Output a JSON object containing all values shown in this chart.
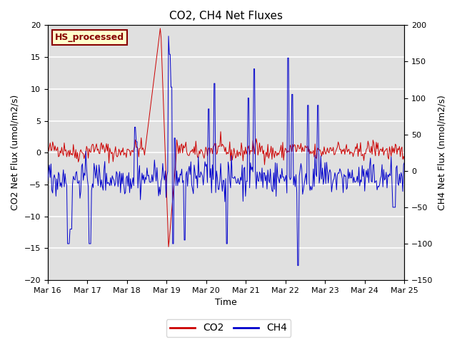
{
  "title": "CO2, CH4 Net Fluxes",
  "xlabel": "Time",
  "ylabel_left": "CO2 Net Flux (umol/m2/s)",
  "ylabel_right": "CH4 Net Flux (nmol/m2/s)",
  "ylim_left": [
    -20,
    20
  ],
  "ylim_right": [
    -150,
    200
  ],
  "yticks_left": [
    -20,
    -15,
    -10,
    -5,
    0,
    5,
    10,
    15,
    20
  ],
  "yticks_right": [
    -150,
    -100,
    -50,
    0,
    50,
    100,
    150,
    200
  ],
  "xtick_labels": [
    "Mar 16",
    "Mar 17",
    "Mar 18",
    "Mar 19",
    "Mar 20",
    "Mar 21",
    "Mar 22",
    "Mar 23",
    "Mar 24",
    "Mar 25"
  ],
  "background_color": "#e0e0e0",
  "fig_bg_color": "#ffffff",
  "co2_color": "#cc0000",
  "ch4_color": "#0000cc",
  "annotation_text": "HS_processed",
  "annotation_bg": "#ffffcc",
  "annotation_border": "#880000",
  "grid_color": "#ffffff",
  "legend_co2": "CO2",
  "legend_ch4": "CH4",
  "seed": 42
}
